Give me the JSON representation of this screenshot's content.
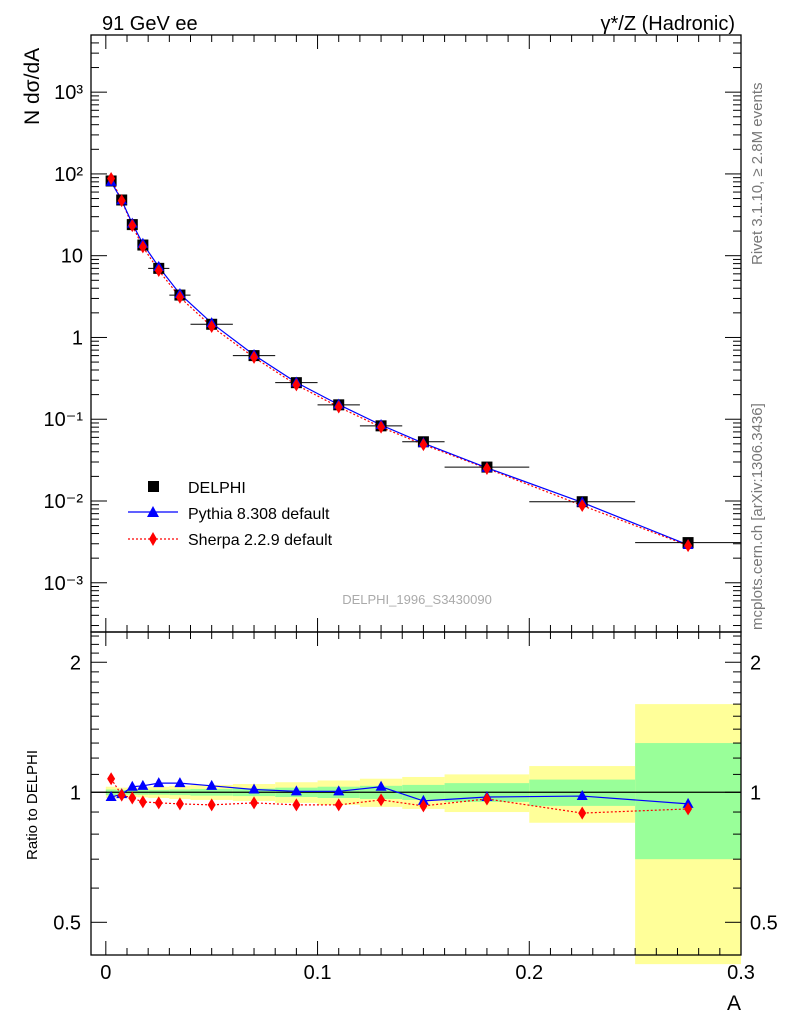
{
  "header": {
    "left_label": "91 GeV ee",
    "right_label": "γ*/Z (Hadronic)"
  },
  "side_labels": {
    "rivet": "Rivet 3.1.10, ≥ 2.8M events",
    "mcplots": "mcplots.cern.ch [arXiv:1306.3436]"
  },
  "watermark": "DELPHI_1996_S3430090",
  "colors": {
    "data": "#000000",
    "pythia": "#0000ff",
    "sherpa": "#ff0000",
    "band_inner": "#99ff99",
    "band_outer": "#ffff99"
  },
  "chart_data": [
    {
      "type": "line",
      "panel": "main",
      "ylabel": "N dσ/dA",
      "yscale": "log",
      "xlim": [
        -0.007,
        0.3
      ],
      "ylim": [
        0.00025,
        5000
      ],
      "y_ticks": [
        {
          "v": 0.001,
          "label": "10⁻³"
        },
        {
          "v": 0.01,
          "label": "10⁻²"
        },
        {
          "v": 0.1,
          "label": "10⁻¹"
        },
        {
          "v": 1,
          "label": "1"
        },
        {
          "v": 10,
          "label": "10"
        },
        {
          "v": 100,
          "label": "10²"
        },
        {
          "v": 1000,
          "label": "10³"
        }
      ],
      "legend_position": "lower-left",
      "series": [
        {
          "name": "DELPHI",
          "marker": "square",
          "x": [
            0.0025,
            0.0075,
            0.0125,
            0.0175,
            0.025,
            0.035,
            0.05,
            0.07,
            0.09,
            0.11,
            0.13,
            0.15,
            0.18,
            0.225,
            0.275
          ],
          "xerr": [
            0.0025,
            0.0025,
            0.0025,
            0.0025,
            0.005,
            0.005,
            0.01,
            0.01,
            0.01,
            0.01,
            0.01,
            0.01,
            0.02,
            0.025,
            0.025
          ],
          "y": [
            82,
            48,
            24,
            13.5,
            7.0,
            3.3,
            1.45,
            0.6,
            0.28,
            0.15,
            0.083,
            0.053,
            0.026,
            0.0098,
            0.0031
          ]
        },
        {
          "name": "Pythia 8.308 default",
          "marker": "triangle",
          "line": "solid",
          "x": [
            0.0025,
            0.0075,
            0.0125,
            0.0175,
            0.025,
            0.035,
            0.05,
            0.07,
            0.09,
            0.11,
            0.13,
            0.15,
            0.18,
            0.225,
            0.275
          ],
          "y": [
            80,
            47.5,
            24.7,
            14.0,
            7.3,
            3.4,
            1.5,
            0.61,
            0.281,
            0.151,
            0.085,
            0.051,
            0.0255,
            0.0096,
            0.0029
          ]
        },
        {
          "name": "Sherpa 2.2.9 default",
          "marker": "diamond",
          "line": "dotted",
          "x": [
            0.0025,
            0.0075,
            0.0125,
            0.0175,
            0.025,
            0.035,
            0.05,
            0.07,
            0.09,
            0.11,
            0.13,
            0.15,
            0.18,
            0.225,
            0.275
          ],
          "y": [
            88,
            47.2,
            23.3,
            12.8,
            6.6,
            3.1,
            1.36,
            0.57,
            0.263,
            0.141,
            0.08,
            0.049,
            0.025,
            0.0088,
            0.00285
          ]
        }
      ]
    },
    {
      "type": "line",
      "panel": "ratio",
      "ylabel": "Ratio to DELPHI",
      "xlabel": "A",
      "yscale": "log",
      "xlim": [
        -0.007,
        0.3
      ],
      "ylim": [
        0.42,
        2.35
      ],
      "y_ticks": [
        {
          "v": 0.5,
          "label": "0.5"
        },
        {
          "v": 1,
          "label": "1"
        },
        {
          "v": 2,
          "label": "2"
        }
      ],
      "x_ticks": [
        {
          "v": 0,
          "label": "0"
        },
        {
          "v": 0.1,
          "label": "0.1"
        },
        {
          "v": 0.2,
          "label": "0.2"
        },
        {
          "v": 0.3,
          "label": "0.3"
        }
      ],
      "bands": {
        "x_low": [
          0,
          0.005,
          0.01,
          0.015,
          0.02,
          0.03,
          0.04,
          0.06,
          0.08,
          0.1,
          0.12,
          0.14,
          0.16,
          0.2,
          0.25
        ],
        "x_high": [
          0.005,
          0.01,
          0.015,
          0.02,
          0.03,
          0.04,
          0.06,
          0.08,
          0.1,
          0.12,
          0.14,
          0.16,
          0.2,
          0.25,
          0.3
        ],
        "inner": [
          0.015,
          0.012,
          0.012,
          0.013,
          0.013,
          0.015,
          0.018,
          0.02,
          0.025,
          0.03,
          0.035,
          0.04,
          0.05,
          0.07,
          0.3
        ],
        "outer": [
          0.03,
          0.025,
          0.025,
          0.027,
          0.03,
          0.035,
          0.04,
          0.045,
          0.055,
          0.065,
          0.075,
          0.085,
          0.1,
          0.15,
          0.6
        ]
      },
      "series": [
        {
          "name": "Pythia 8.308 default",
          "x": [
            0.0025,
            0.0075,
            0.0125,
            0.0175,
            0.025,
            0.035,
            0.05,
            0.07,
            0.09,
            0.11,
            0.13,
            0.15,
            0.18,
            0.225,
            0.275
          ],
          "y": [
            0.975,
            0.99,
            1.03,
            1.035,
            1.05,
            1.05,
            1.035,
            1.015,
            1.005,
            1.005,
            1.03,
            0.955,
            0.975,
            0.98,
            0.94
          ]
        },
        {
          "name": "Sherpa 2.2.9 default",
          "x": [
            0.0025,
            0.0075,
            0.0125,
            0.0175,
            0.025,
            0.035,
            0.05,
            0.07,
            0.09,
            0.11,
            0.13,
            0.15,
            0.18,
            0.225,
            0.275
          ],
          "y": [
            1.075,
            0.985,
            0.97,
            0.95,
            0.945,
            0.94,
            0.935,
            0.945,
            0.935,
            0.935,
            0.96,
            0.93,
            0.965,
            0.895,
            0.915
          ]
        }
      ]
    }
  ]
}
